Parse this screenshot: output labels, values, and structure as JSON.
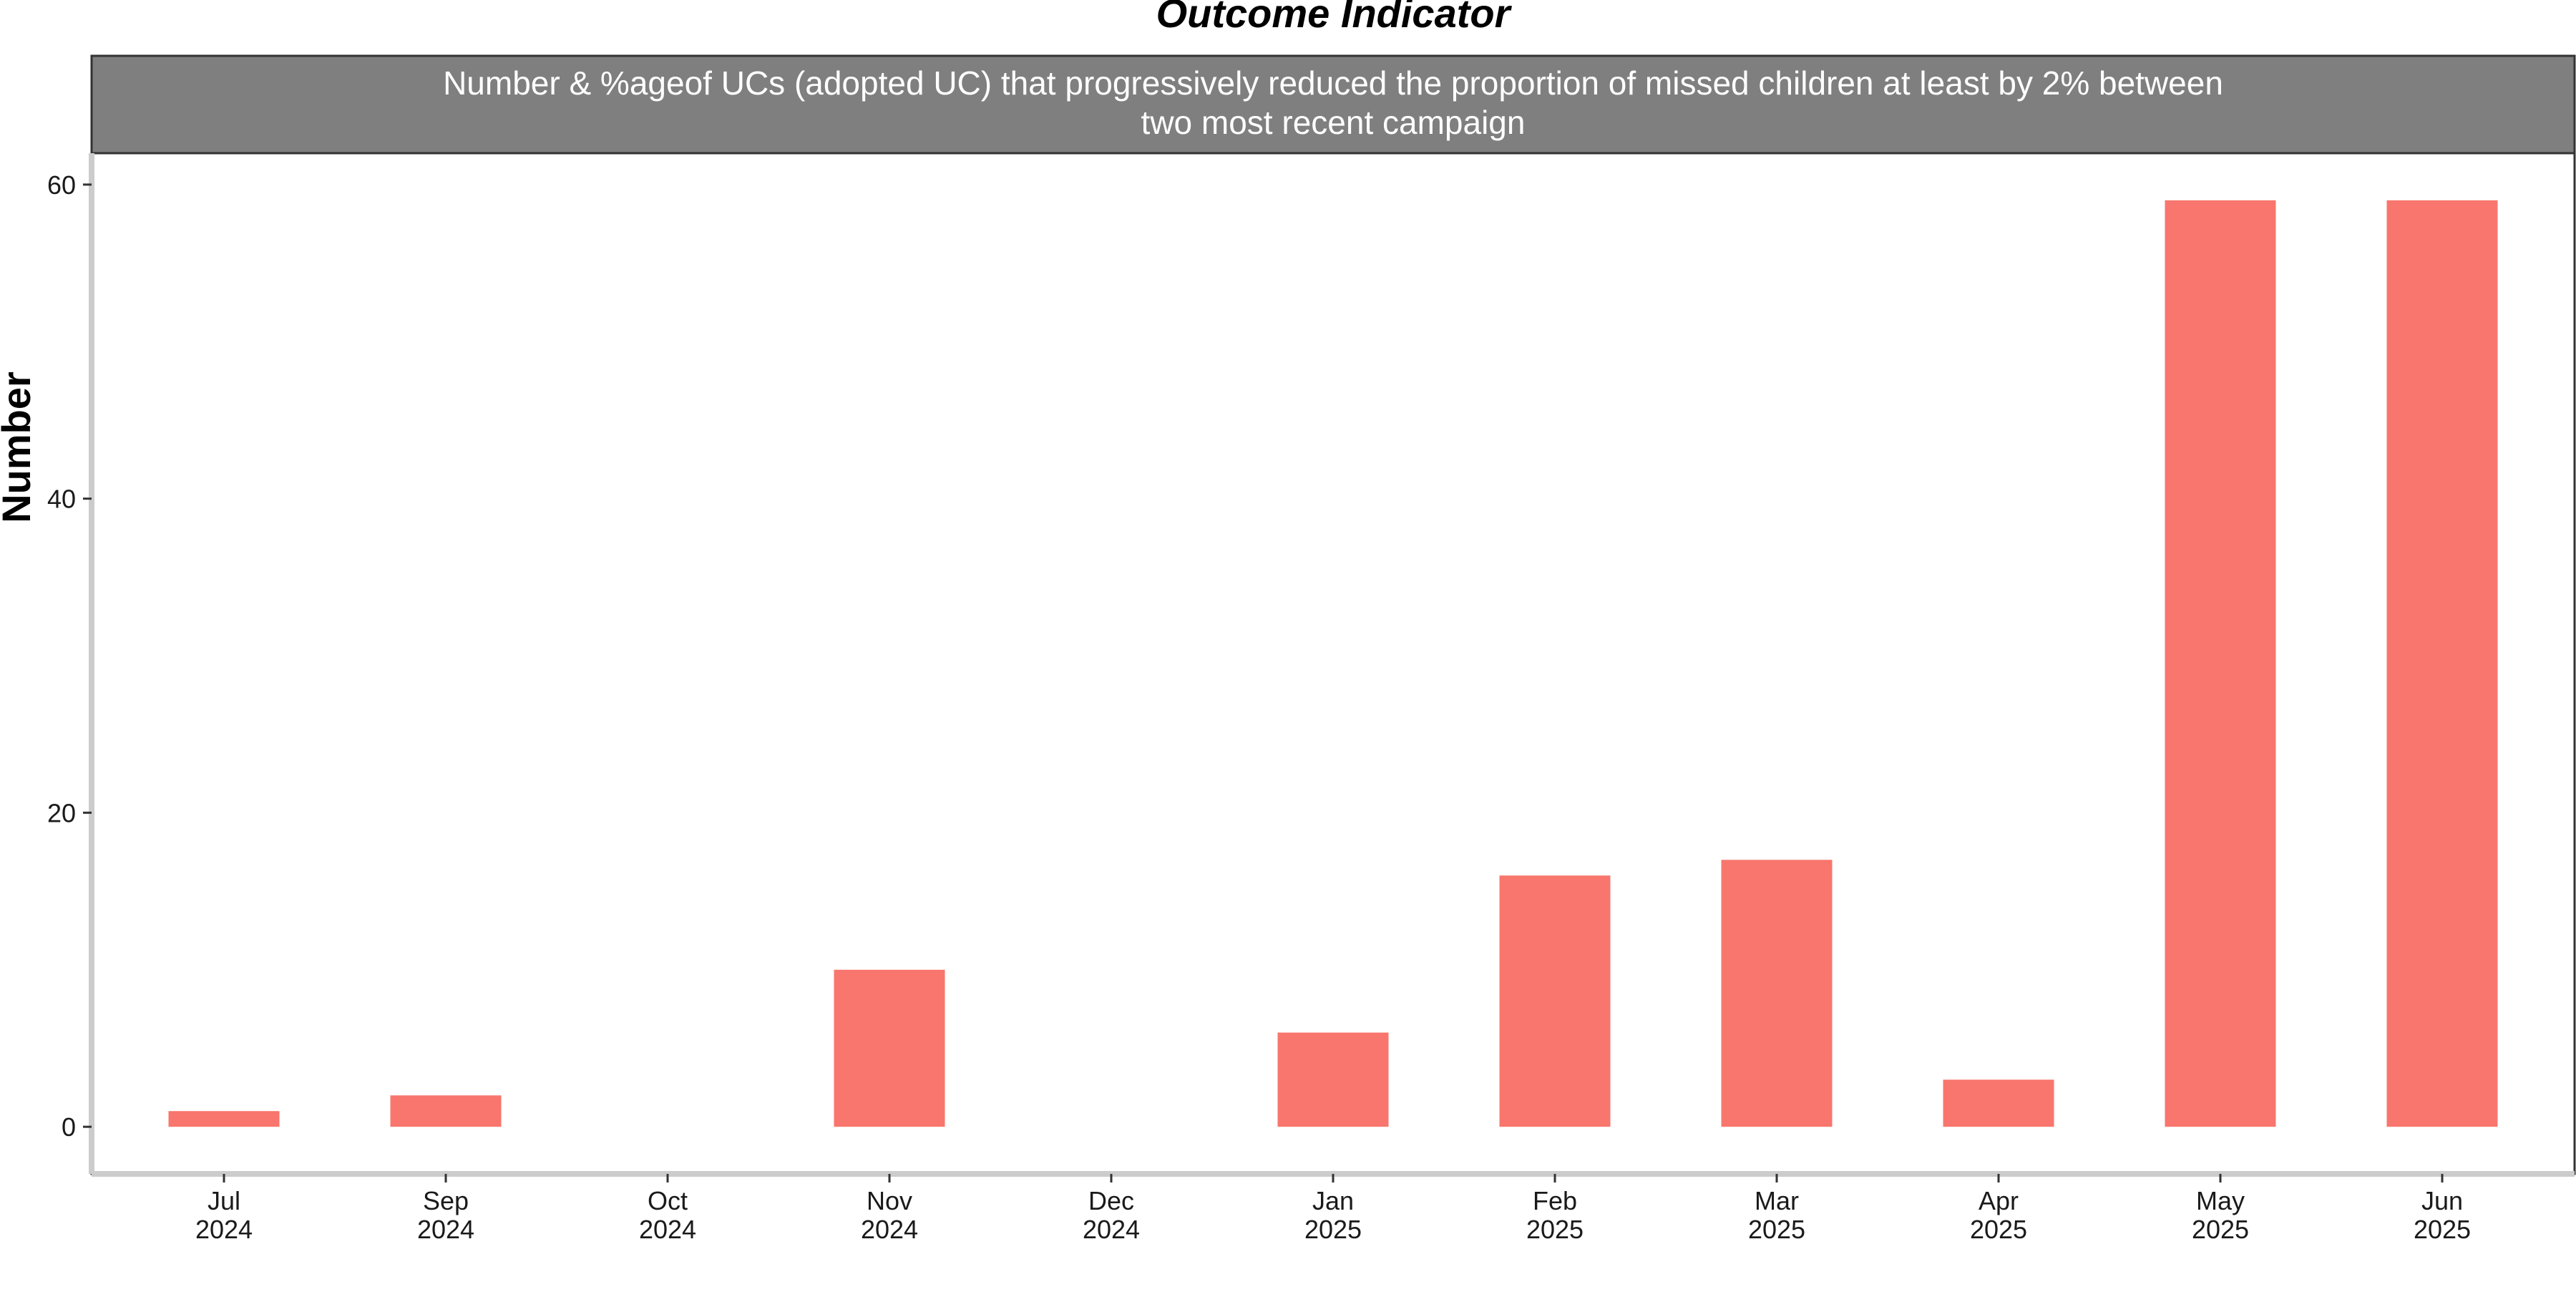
{
  "chart_data": {
    "type": "bar",
    "title": "Outcome Indicator",
    "subtitle": "Number & %ageof UCs (adopted UC) that progressively reduced the proportion of missed children at least by 2% between two most recent campaign",
    "subtitle_lines": [
      "Number & %ageof UCs (adopted UC) that progressively reduced the proportion of missed children at least by 2% between",
      "two most recent campaign"
    ],
    "xlabel": "",
    "ylabel": "Number",
    "ylim": [
      -3,
      62
    ],
    "yticks": [
      0,
      20,
      40,
      60
    ],
    "categories": [
      "Jul 2024",
      "Sep 2024",
      "Oct 2024",
      "Nov 2024",
      "Dec 2024",
      "Jan 2025",
      "Feb 2025",
      "Mar 2025",
      "Apr 2025",
      "May 2025",
      "Jun 2025"
    ],
    "category_lines": [
      [
        "Jul",
        "2024"
      ],
      [
        "Sep",
        "2024"
      ],
      [
        "Oct",
        "2024"
      ],
      [
        "Nov",
        "2024"
      ],
      [
        "Dec",
        "2024"
      ],
      [
        "Jan",
        "2025"
      ],
      [
        "Feb",
        "2025"
      ],
      [
        "Mar",
        "2025"
      ],
      [
        "Apr",
        "2025"
      ],
      [
        "May",
        "2025"
      ],
      [
        "Jun",
        "2025"
      ]
    ],
    "values": [
      1,
      2,
      0,
      10,
      0,
      6,
      16,
      17,
      3,
      59,
      59
    ],
    "bar_color": "#F8766D",
    "strip_color": "#7F7F7F",
    "strip_text_color": "#FFFFFF",
    "axis_color": "#CCCCCC",
    "grid": false,
    "legend": "none"
  }
}
